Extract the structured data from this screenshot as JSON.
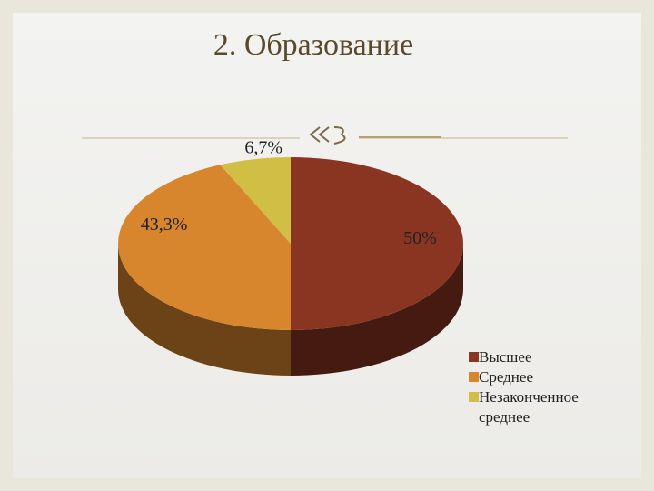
{
  "chart_data": {
    "type": "pie3d",
    "title": "2. Образование",
    "categories": [
      "Высшее",
      "Среднее",
      "Незаконченное среднее"
    ],
    "values": [
      50,
      43.3,
      6.7
    ],
    "value_labels": [
      "50%",
      "43,3%",
      "6,7%"
    ],
    "colors": [
      "#8a3522",
      "#d8862e",
      "#d1bf45"
    ],
    "legend": "right"
  }
}
